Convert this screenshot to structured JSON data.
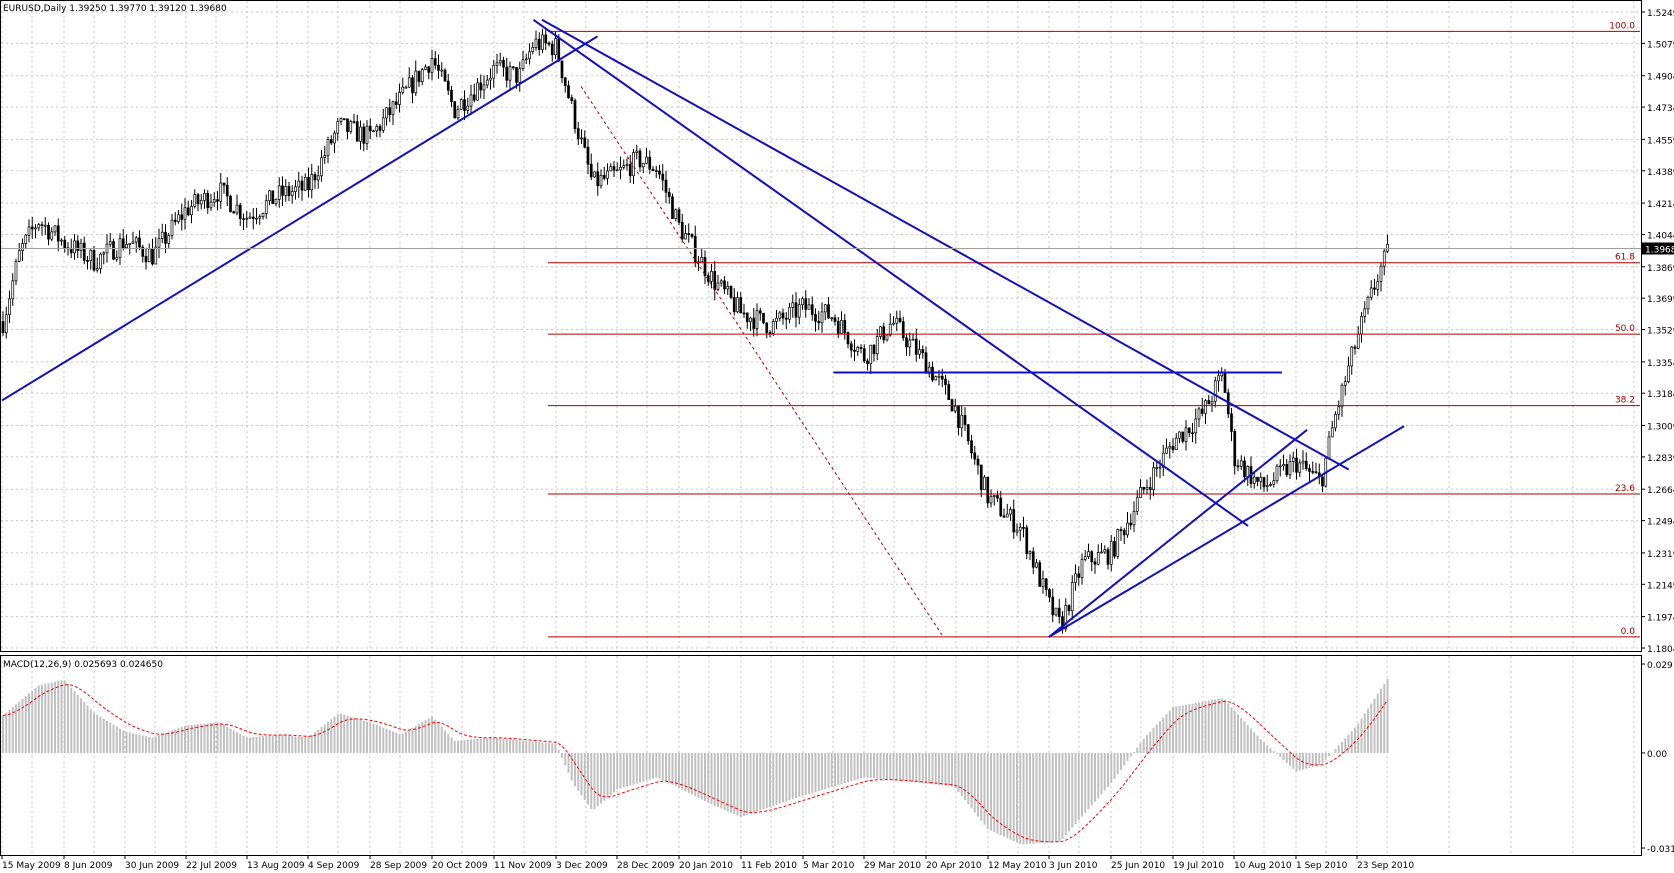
{
  "header": {
    "symbol": "EURUSD,Daily",
    "ohlc": "1.39250 1.39770 1.39120 1.39680"
  },
  "chart_data": [
    {
      "type": "candlestick",
      "title": "EURUSD,Daily",
      "x_tick_labels": [
        "15 May 2009",
        "8 Jun 2009",
        "30 Jun 2009",
        "22 Jul 2009",
        "13 Aug 2009",
        "4 Sep 2009",
        "28 Sep 2009",
        "20 Oct 2009",
        "11 Nov 2009",
        "3 Dec 2009",
        "28 Dec 2009",
        "20 Jan 2010",
        "11 Feb 2010",
        "5 Mar 2010",
        "29 Mar 2010",
        "20 Apr 2010",
        "12 May 2010",
        "3 Jun 2010",
        "25 Jun 2010",
        "19 Jul 2010",
        "10 Aug 2010",
        "1 Sep 2010",
        "23 Sep 2010"
      ],
      "y_tick_labels": [
        "1.52490",
        "1.50790",
        "1.49040",
        "1.47340",
        "1.45590",
        "1.43890",
        "1.42140",
        "1.40440",
        "1.38690",
        "1.36990",
        "1.35290",
        "1.33540",
        "1.31840",
        "1.30090",
        "1.28390",
        "1.26640",
        "1.24940",
        "1.23190",
        "1.21490",
        "1.19740",
        "1.18040"
      ],
      "ylim": [
        1.1804,
        1.5249
      ],
      "current_price": "1.39680",
      "grid": true,
      "price_path": [
        {
          "date": "15 May 2009",
          "close": 1.355
        },
        {
          "date": "22 May 2009",
          "close": 1.395
        },
        {
          "date": "29 May 2009",
          "close": 1.412
        },
        {
          "date": "8 Jun 2009",
          "close": 1.4
        },
        {
          "date": "19 Jun 2009",
          "close": 1.39
        },
        {
          "date": "30 Jun 2009",
          "close": 1.401
        },
        {
          "date": "10 Jul 2009",
          "close": 1.393
        },
        {
          "date": "22 Jul 2009",
          "close": 1.418
        },
        {
          "date": "3 Aug 2009",
          "close": 1.428
        },
        {
          "date": "13 Aug 2009",
          "close": 1.414
        },
        {
          "date": "25 Aug 2009",
          "close": 1.426
        },
        {
          "date": "4 Sep 2009",
          "close": 1.43
        },
        {
          "date": "16 Sep 2009",
          "close": 1.463
        },
        {
          "date": "28 Sep 2009",
          "close": 1.457
        },
        {
          "date": "9 Oct 2009",
          "close": 1.478
        },
        {
          "date": "20 Oct 2009",
          "close": 1.5
        },
        {
          "date": "28 Oct 2009",
          "close": 1.472
        },
        {
          "date": "11 Nov 2009",
          "close": 1.494
        },
        {
          "date": "20 Nov 2009",
          "close": 1.49
        },
        {
          "date": "25 Nov 2009",
          "close": 1.508
        },
        {
          "date": "3 Dec 2009",
          "close": 1.506
        },
        {
          "date": "10 Dec 2009",
          "close": 1.47
        },
        {
          "date": "18 Dec 2009",
          "close": 1.432
        },
        {
          "date": "28 Dec 2009",
          "close": 1.437
        },
        {
          "date": "5 Jan 2010",
          "close": 1.445
        },
        {
          "date": "12 Jan 2010",
          "close": 1.44
        },
        {
          "date": "20 Jan 2010",
          "close": 1.409
        },
        {
          "date": "1 Feb 2010",
          "close": 1.38
        },
        {
          "date": "11 Feb 2010",
          "close": 1.362
        },
        {
          "date": "22 Feb 2010",
          "close": 1.355
        },
        {
          "date": "5 Mar 2010",
          "close": 1.365
        },
        {
          "date": "17 Mar 2010",
          "close": 1.36
        },
        {
          "date": "29 Mar 2010",
          "close": 1.338
        },
        {
          "date": "8 Apr 2010",
          "close": 1.357
        },
        {
          "date": "20 Apr 2010",
          "close": 1.335
        },
        {
          "date": "30 Apr 2010",
          "close": 1.312
        },
        {
          "date": "12 May 2010",
          "close": 1.262
        },
        {
          "date": "24 May 2010",
          "close": 1.245
        },
        {
          "date": "3 Jun 2010",
          "close": 1.204
        },
        {
          "date": "7 Jun 2010",
          "close": 1.192
        },
        {
          "date": "15 Jun 2010",
          "close": 1.227
        },
        {
          "date": "25 Jun 2010",
          "close": 1.232
        },
        {
          "date": "8 Jul 2010",
          "close": 1.267
        },
        {
          "date": "19 Jul 2010",
          "close": 1.292
        },
        {
          "date": "30 Jul 2010",
          "close": 1.308
        },
        {
          "date": "6 Aug 2010",
          "close": 1.329
        },
        {
          "date": "10 Aug 2010",
          "close": 1.284
        },
        {
          "date": "20 Aug 2010",
          "close": 1.267
        },
        {
          "date": "1 Sep 2010",
          "close": 1.281
        },
        {
          "date": "10 Sep 2010",
          "close": 1.27
        },
        {
          "date": "15 Sep 2010",
          "close": 1.305
        },
        {
          "date": "23 Sep 2010",
          "close": 1.348
        },
        {
          "date": "1 Oct 2010",
          "close": 1.384
        },
        {
          "date": "5 Oct 2010",
          "close": 1.3968
        }
      ],
      "fibonacci": {
        "levels": [
          {
            "label": "100.0",
            "value": 1.5144
          },
          {
            "label": "61.8",
            "value": 1.3891
          },
          {
            "label": "50.0",
            "value": 1.3504
          },
          {
            "label": "38.2",
            "value": 1.3117
          },
          {
            "label": "23.6",
            "value": 1.2638
          },
          {
            "label": "0.0",
            "value": 1.1864
          }
        ],
        "color": "#b00000"
      },
      "trendlines": [
        {
          "p1": [
            "15 May 2009",
            1.3145
          ],
          "p2": [
            "20 Dec 2009",
            1.5117
          ]
        },
        {
          "p1": [
            "25 Nov 2009",
            1.5207
          ],
          "p2": [
            "15 Aug 2010",
            1.2465
          ]
        },
        {
          "p1": [
            "28 Nov 2009",
            1.5207
          ],
          "p2": [
            "20 Sep 2010",
            1.2771
          ]
        },
        {
          "p1": [
            "17 Mar 2010",
            1.3296
          ],
          "p2": [
            "27 Aug 2010",
            1.3296
          ]
        },
        {
          "p1": [
            "3 Jun 2010",
            1.1864
          ],
          "p2": [
            "5 Sep 2010",
            1.2986
          ]
        },
        {
          "p1": [
            "3 Jun 2010",
            1.1864
          ],
          "p2": [
            "10 Oct 2010",
            1.3006
          ]
        }
      ],
      "trendline_color": "#1010c0"
    },
    {
      "type": "bar",
      "title": "MACD(12,26,9) 0.025693 0.024650",
      "y_tick_labels": [
        "0.029135",
        "0.00",
        "-0.03114"
      ],
      "ylim": [
        -0.03114,
        0.029135
      ],
      "macd_path": [
        {
          "date": "15 May 2009",
          "value": 0.012
        },
        {
          "date": "29 May 2009",
          "value": 0.022
        },
        {
          "date": "8 Jun 2009",
          "value": 0.024
        },
        {
          "date": "19 Jun 2009",
          "value": 0.013
        },
        {
          "date": "30 Jun 2009",
          "value": 0.007
        },
        {
          "date": "10 Jul 2009",
          "value": 0.005
        },
        {
          "date": "22 Jul 2009",
          "value": 0.009
        },
        {
          "date": "3 Aug 2009",
          "value": 0.01
        },
        {
          "date": "13 Aug 2009",
          "value": 0.005
        },
        {
          "date": "25 Aug 2009",
          "value": 0.006
        },
        {
          "date": "4 Sep 2009",
          "value": 0.005
        },
        {
          "date": "16 Sep 2009",
          "value": 0.013
        },
        {
          "date": "28 Sep 2009",
          "value": 0.01
        },
        {
          "date": "9 Oct 2009",
          "value": 0.006
        },
        {
          "date": "20 Oct 2009",
          "value": 0.012
        },
        {
          "date": "28 Oct 2009",
          "value": 0.004
        },
        {
          "date": "11 Nov 2009",
          "value": 0.005
        },
        {
          "date": "3 Dec 2009",
          "value": 0.003
        },
        {
          "date": "10 Dec 2009",
          "value": -0.01
        },
        {
          "date": "18 Dec 2009",
          "value": -0.019
        },
        {
          "date": "28 Dec 2009",
          "value": -0.012
        },
        {
          "date": "12 Jan 2010",
          "value": -0.008
        },
        {
          "date": "1 Feb 2010",
          "value": -0.017
        },
        {
          "date": "11 Feb 2010",
          "value": -0.021
        },
        {
          "date": "5 Mar 2010",
          "value": -0.014
        },
        {
          "date": "29 Mar 2010",
          "value": -0.008
        },
        {
          "date": "20 Apr 2010",
          "value": -0.01
        },
        {
          "date": "30 Apr 2010",
          "value": -0.011
        },
        {
          "date": "12 May 2010",
          "value": -0.025
        },
        {
          "date": "24 May 2010",
          "value": -0.03
        },
        {
          "date": "7 Jun 2010",
          "value": -0.029
        },
        {
          "date": "25 Jun 2010",
          "value": -0.01
        },
        {
          "date": "8 Jul 2010",
          "value": 0.005
        },
        {
          "date": "19 Jul 2010",
          "value": 0.015
        },
        {
          "date": "6 Aug 2010",
          "value": 0.018
        },
        {
          "date": "20 Aug 2010",
          "value": 0.004
        },
        {
          "date": "1 Sep 2010",
          "value": -0.006
        },
        {
          "date": "10 Sep 2010",
          "value": -0.004
        },
        {
          "date": "23 Sep 2010",
          "value": 0.009
        },
        {
          "date": "5 Oct 2010",
          "value": 0.0257
        }
      ],
      "histogram_color": "#c0c0c0",
      "signal_color": "#ff0000"
    }
  ]
}
